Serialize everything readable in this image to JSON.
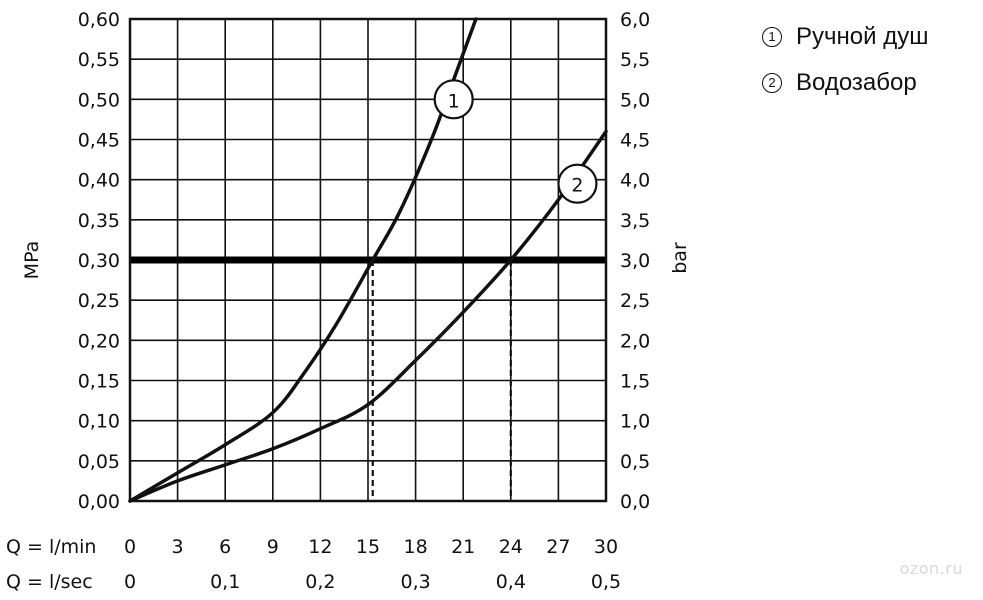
{
  "chart_data": {
    "type": "line",
    "ylabel_left": "MPa",
    "ylabel_right": "bar",
    "ylim": [
      0,
      0.6
    ],
    "y_ticks_left": [
      "0,00",
      "0,05",
      "0,10",
      "0,15",
      "0,20",
      "0,25",
      "0,30",
      "0,35",
      "0,40",
      "0,45",
      "0,50",
      "0,55",
      "0,60"
    ],
    "y_ticks_right": [
      "0,0",
      "0,5",
      "1,0",
      "1,5",
      "2,0",
      "2,5",
      "3,0",
      "3,5",
      "4,0",
      "4,5",
      "5,0",
      "5,5",
      "6,0"
    ],
    "xlim": [
      0,
      30
    ],
    "x_label_lmin": "Q = l/min",
    "x_ticks_lmin": [
      "0",
      "3",
      "6",
      "9",
      "12",
      "15",
      "18",
      "21",
      "24",
      "27",
      "30"
    ],
    "x_label_lsec": "Q = l/sec",
    "x_ticks_lsec": [
      {
        "label": "0",
        "x": 0
      },
      {
        "label": "0,1",
        "x": 6
      },
      {
        "label": "0,2",
        "x": 12
      },
      {
        "label": "0,3",
        "x": 18
      },
      {
        "label": "0,4",
        "x": 24
      },
      {
        "label": "0,5",
        "x": 30
      }
    ],
    "reference_line": {
      "y": 0.3
    },
    "dashed_markers": [
      15.3,
      24
    ],
    "series": [
      {
        "marker": "1",
        "name": "Ручной душ",
        "x": [
          0,
          3,
          6,
          9,
          11,
          13,
          15.3,
          17,
          19,
          20.5,
          21.8
        ],
        "y": [
          0,
          0.035,
          0.07,
          0.11,
          0.16,
          0.22,
          0.3,
          0.36,
          0.45,
          0.53,
          0.6
        ]
      },
      {
        "marker": "2",
        "name": "Водозабор",
        "x": [
          0,
          3,
          6,
          9,
          12,
          15,
          18,
          21,
          24,
          27,
          30
        ],
        "y": [
          0,
          0.025,
          0.045,
          0.065,
          0.09,
          0.12,
          0.175,
          0.235,
          0.3,
          0.375,
          0.46
        ]
      }
    ],
    "grid": true
  },
  "legend": {
    "items": [
      {
        "num": "1",
        "label": "Ручной душ"
      },
      {
        "num": "2",
        "label": "Водозабор"
      }
    ]
  },
  "watermark": "ozon.ru"
}
